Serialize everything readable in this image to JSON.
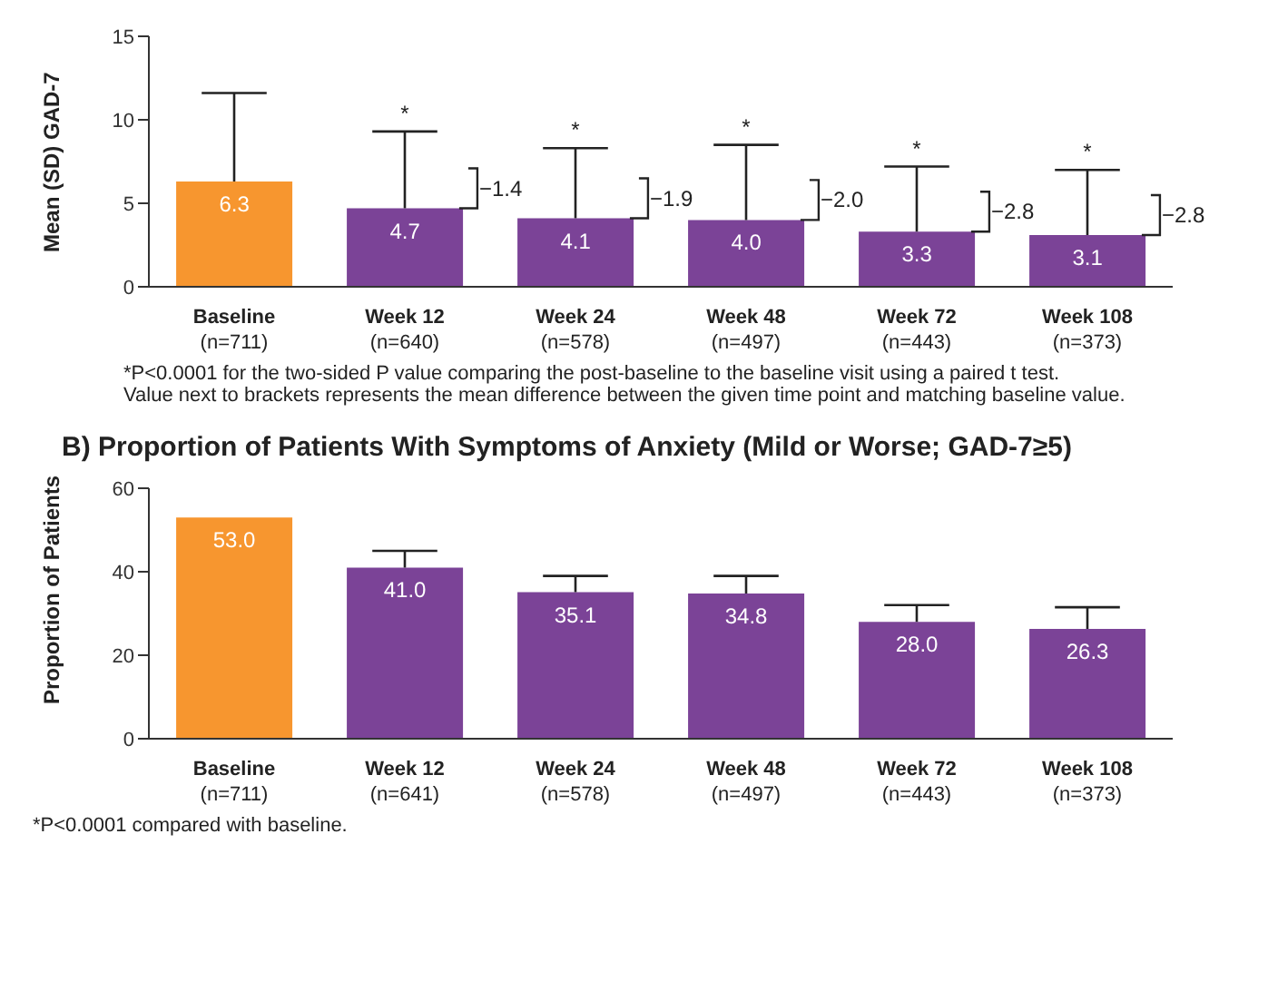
{
  "chart_data": [
    {
      "type": "bar",
      "ylabel": "Mean (SD) GAD-7",
      "categories": [
        "Baseline\n(n=711)",
        "Week 12\n(n=640)",
        "Week 24\n(n=578)",
        "Week 48\n(n=497)",
        "Week 72\n(n=443)",
        "Week 108\n(n=373)"
      ],
      "values": [
        6.3,
        4.7,
        4.1,
        4.0,
        3.3,
        3.1
      ],
      "value_labels": [
        "6.3",
        "4.7",
        "4.1",
        "4.0",
        "3.3",
        "3.1"
      ],
      "colors": [
        "#f7962f",
        "#7b4397",
        "#7b4397",
        "#7b4397",
        "#7b4397",
        "#7b4397"
      ],
      "errors": [
        [
          6.3,
          11.6
        ],
        [
          4.7,
          9.3
        ],
        [
          4.1,
          8.3
        ],
        [
          4.0,
          8.5
        ],
        [
          3.3,
          7.2
        ],
        [
          3.1,
          7.0
        ]
      ],
      "ylim": [
        0,
        15
      ],
      "yticks": [
        0,
        5,
        10,
        15
      ],
      "annotations": [
        {
          "text": "*",
          "x": "Week 12\n(n=640)",
          "y": 9.3
        },
        {
          "text": "*",
          "x": "Week 24\n(n=578)",
          "y": 8.3
        },
        {
          "text": "*",
          "x": "Week 48\n(n=497)",
          "y": 8.5
        },
        {
          "text": "*",
          "x": "Week 72\n(n=443)",
          "y": 7.2
        },
        {
          "text": "*",
          "x": "Week 108\n(n=373)",
          "y": 7.0
        },
        "−1.4",
        "−1.9",
        "−2.0",
        "−2.8",
        "−2.8",
        "*P<0.0001 for the two-sided P value comparing the post-baseline to the baseline visit using a paired t test.",
        "Value next to brackets represents the mean difference between the given time point and matching baseline value."
      ]
    },
    {
      "type": "bar",
      "title": "B) Proportion of Patients With Symptoms of Anxiety (Mild or Worse; GAD-7≥5)",
      "ylabel": "Proportion of Patients",
      "categories": [
        "Baseline\n(n=711)",
        "Week 12\n(n=641)",
        "Week 24\n(n=578)",
        "Week 48\n(n=497)",
        "Week 72\n(n=443)",
        "Week 108\n(n=373)"
      ],
      "values": [
        53.0,
        41.0,
        35.1,
        34.8,
        28.0,
        26.3
      ],
      "value_labels": [
        "53.0",
        "41.0",
        "35.1",
        "34.8",
        "28.0",
        "26.3"
      ],
      "colors": [
        "#f7962f",
        "#7b4397",
        "#7b4397",
        "#7b4397",
        "#7b4397",
        "#7b4397"
      ],
      "errors": [
        null,
        [
          41.0,
          45.0
        ],
        [
          35.1,
          39.0
        ],
        [
          34.8,
          39.0
        ],
        [
          28.0,
          32.0
        ],
        [
          26.3,
          31.5
        ]
      ],
      "ylim": [
        0,
        60
      ],
      "yticks": [
        0,
        20,
        40,
        60
      ],
      "annotations": [
        "*P<0.0001 compared with baseline."
      ]
    }
  ]
}
